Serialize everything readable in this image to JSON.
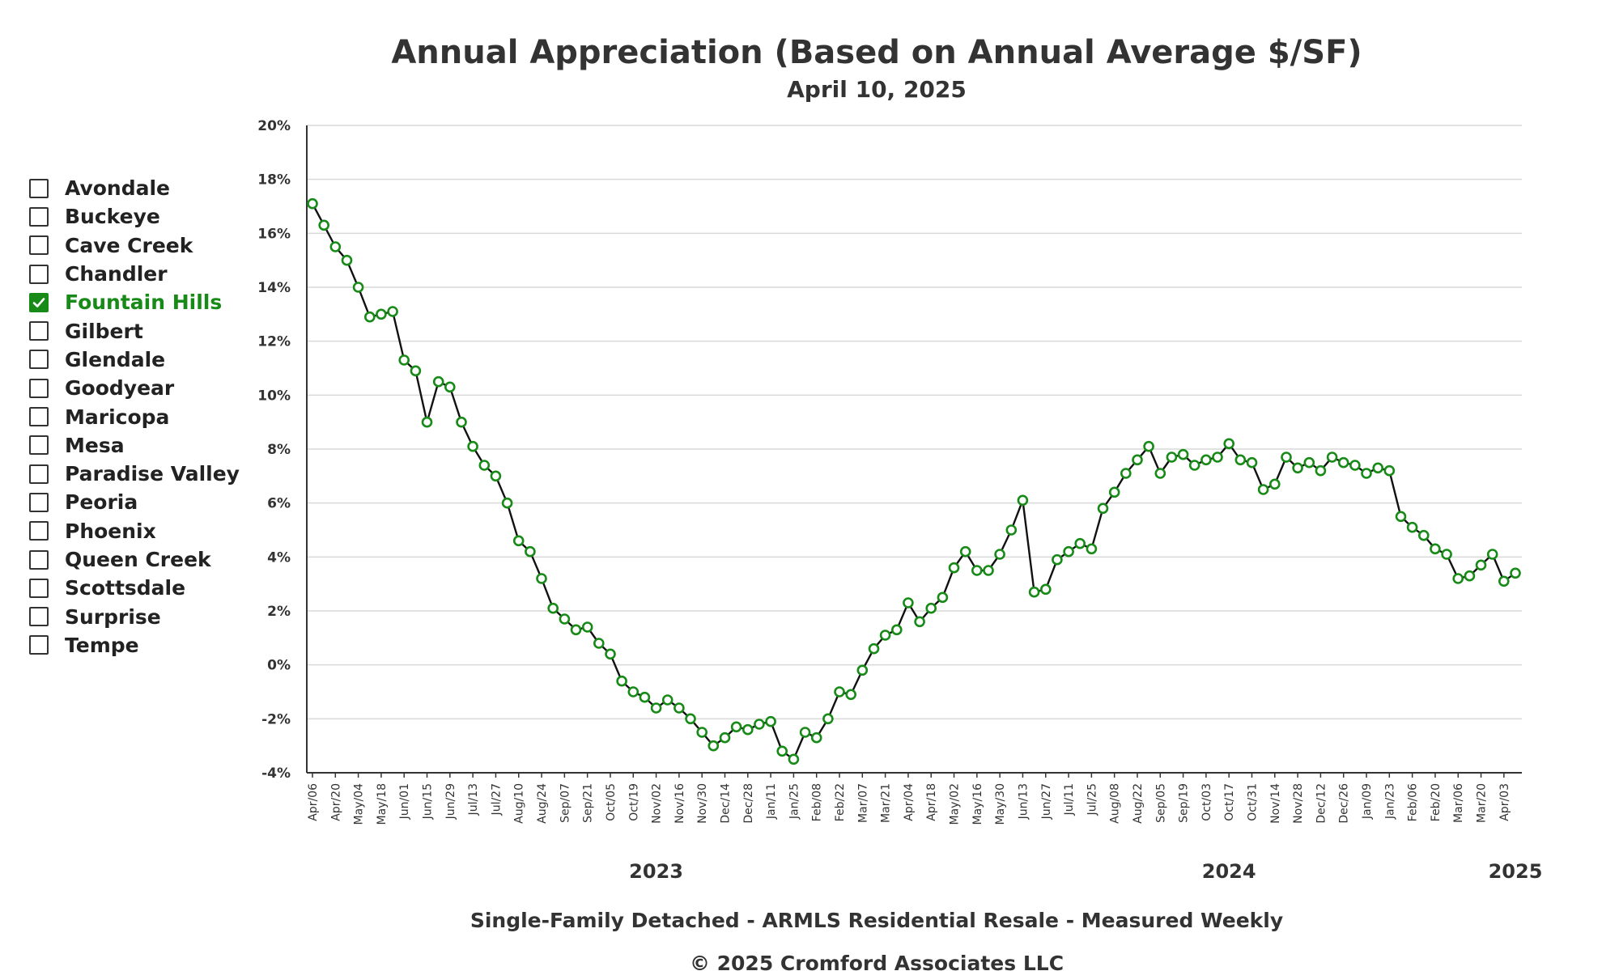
{
  "legend": {
    "items": [
      {
        "label": "Avondale",
        "checked": false
      },
      {
        "label": "Buckeye",
        "checked": false
      },
      {
        "label": "Cave Creek",
        "checked": false
      },
      {
        "label": "Chandler",
        "checked": false
      },
      {
        "label": "Fountain Hills",
        "checked": true
      },
      {
        "label": "Gilbert",
        "checked": false
      },
      {
        "label": "Glendale",
        "checked": false
      },
      {
        "label": "Goodyear",
        "checked": false
      },
      {
        "label": "Maricopa",
        "checked": false
      },
      {
        "label": "Mesa",
        "checked": false
      },
      {
        "label": "Paradise Valley",
        "checked": false
      },
      {
        "label": "Peoria",
        "checked": false
      },
      {
        "label": "Phoenix",
        "checked": false
      },
      {
        "label": "Queen Creek",
        "checked": false
      },
      {
        "label": "Scottsdale",
        "checked": false
      },
      {
        "label": "Surprise",
        "checked": false
      },
      {
        "label": "Tempe",
        "checked": false
      }
    ]
  },
  "colors": {
    "accent": "#178a17",
    "line": "#111111",
    "grid": "#d9d9d9",
    "text": "#333333"
  },
  "chart_data": {
    "type": "line",
    "title": "Annual Appreciation (Based on Annual Average $/SF)",
    "subtitle": "April 10, 2025",
    "footer": "Single-Family Detached - ARMLS Residential Resale - Measured Weekly",
    "copyright": "© 2025 Cromford Associates LLC",
    "ylim": [
      -4,
      20
    ],
    "yticks": [
      -4,
      -2,
      0,
      2,
      4,
      6,
      8,
      10,
      12,
      14,
      16,
      18,
      20
    ],
    "ytick_labels": [
      "-4%",
      "-2%",
      "0%",
      "2%",
      "4%",
      "6%",
      "8%",
      "10%",
      "12%",
      "14%",
      "16%",
      "18%",
      "20%"
    ],
    "grid": true,
    "x_tick_labels": [
      "Apr/06",
      "Apr/20",
      "May/04",
      "May/18",
      "Jun/01",
      "Jun/15",
      "Jun/29",
      "Jul/13",
      "Jul/27",
      "Aug/10",
      "Aug/24",
      "Sep/07",
      "Sep/21",
      "Oct/05",
      "Oct/19",
      "Nov/02",
      "Nov/16",
      "Nov/30",
      "Dec/14",
      "Dec/28",
      "Jan/11",
      "Jan/25",
      "Feb/08",
      "Feb/22",
      "Mar/07",
      "Mar/21",
      "Apr/04",
      "Apr/18",
      "May/02",
      "May/16",
      "May/30",
      "Jun/13",
      "Jun/27",
      "Jul/11",
      "Jul/25",
      "Aug/08",
      "Aug/22",
      "Sep/05",
      "Sep/19",
      "Oct/03",
      "Oct/17",
      "Oct/31",
      "Nov/14",
      "Nov/28",
      "Dec/12",
      "Dec/26",
      "Jan/09",
      "Jan/23",
      "Feb/06",
      "Feb/20",
      "Mar/06",
      "Mar/20",
      "Apr/03"
    ],
    "year_labels": [
      {
        "label": "2023",
        "at_tick": 15
      },
      {
        "label": "2024",
        "at_tick": 40
      },
      {
        "label": "2025",
        "at_tick": 52.5
      }
    ],
    "series": [
      {
        "name": "Fountain Hills",
        "values": [
          17.1,
          16.3,
          15.5,
          15.0,
          14.0,
          12.9,
          13.0,
          13.1,
          11.3,
          10.9,
          9.0,
          10.5,
          10.3,
          9.0,
          8.1,
          7.4,
          7.0,
          6.0,
          4.6,
          4.2,
          3.2,
          2.1,
          1.7,
          1.3,
          1.4,
          0.8,
          0.4,
          -0.6,
          -1.0,
          -1.2,
          -1.6,
          -1.3,
          -1.6,
          -2.0,
          -2.5,
          -3.0,
          -2.7,
          -2.3,
          -2.4,
          -2.2,
          -2.1,
          -3.2,
          -3.5,
          -2.5,
          -2.7,
          -2.0,
          -1.0,
          -1.1,
          -0.2,
          0.6,
          1.1,
          1.3,
          2.3,
          1.6,
          2.1,
          2.5,
          3.6,
          4.2,
          3.5,
          3.5,
          4.1,
          5.0,
          6.1,
          2.7,
          2.8,
          3.9,
          4.2,
          4.5,
          4.3,
          5.8,
          6.4,
          7.1,
          7.6,
          8.1,
          7.1,
          7.7,
          7.8,
          7.4,
          7.6,
          7.7,
          8.2,
          7.6,
          7.5,
          6.5,
          6.7,
          7.7,
          7.3,
          7.5,
          7.2,
          7.7,
          7.5,
          7.4,
          7.1,
          7.3,
          7.2,
          5.5,
          5.1,
          4.8,
          4.3,
          4.1,
          3.2,
          3.3,
          3.7,
          4.1,
          3.1,
          3.4
        ]
      }
    ]
  }
}
